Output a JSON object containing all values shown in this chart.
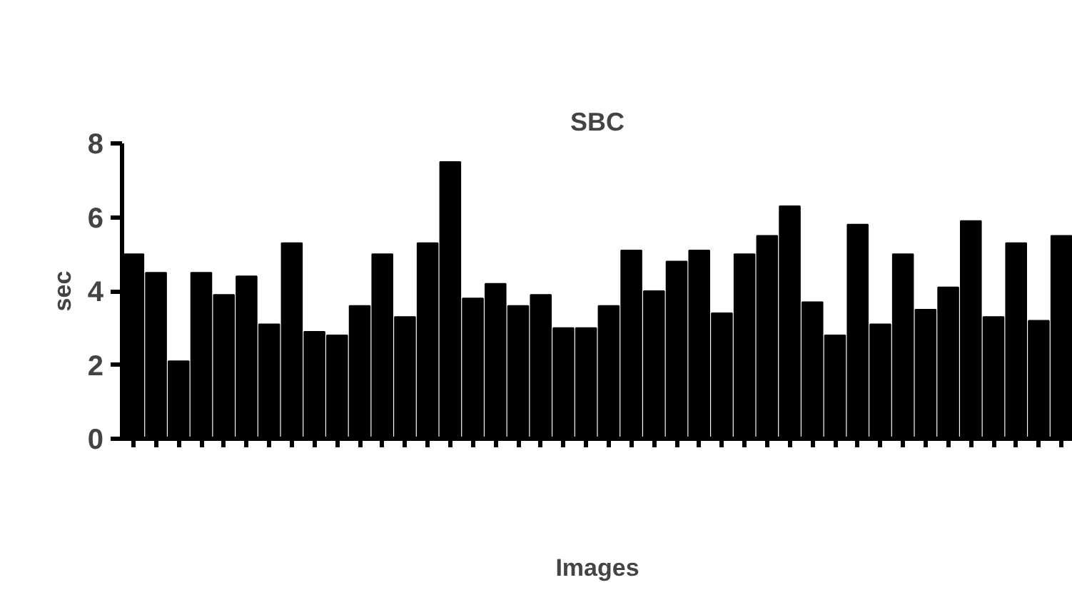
{
  "chart_data": {
    "type": "bar",
    "title": "SBC",
    "xlabel": "Images",
    "ylabel": "sec",
    "categories": [
      null,
      null,
      null,
      null,
      null,
      null,
      null,
      null,
      null,
      null,
      null,
      null,
      null,
      null,
      null,
      null,
      null,
      null,
      null,
      null,
      null,
      null,
      null,
      null,
      null,
      null,
      null,
      null,
      null,
      null,
      null,
      null,
      null,
      null,
      null,
      null,
      null,
      null,
      null,
      null,
      null,
      null
    ],
    "values": [
      5.0,
      4.5,
      2.1,
      4.5,
      3.9,
      4.4,
      3.1,
      5.3,
      2.9,
      2.8,
      3.6,
      5.0,
      3.3,
      5.3,
      7.5,
      3.8,
      4.2,
      3.6,
      3.9,
      3.0,
      3.0,
      3.6,
      5.1,
      4.0,
      4.8,
      5.1,
      3.4,
      5.0,
      5.5,
      6.3,
      3.7,
      2.8,
      5.8,
      3.1,
      5.0,
      3.5,
      4.1,
      5.9,
      3.3,
      5.3,
      3.2,
      5.5
    ],
    "color": "#000000",
    "ylim": [
      0,
      8
    ],
    "yticks": [
      0,
      2,
      4,
      6,
      8
    ],
    "grid": false
  }
}
